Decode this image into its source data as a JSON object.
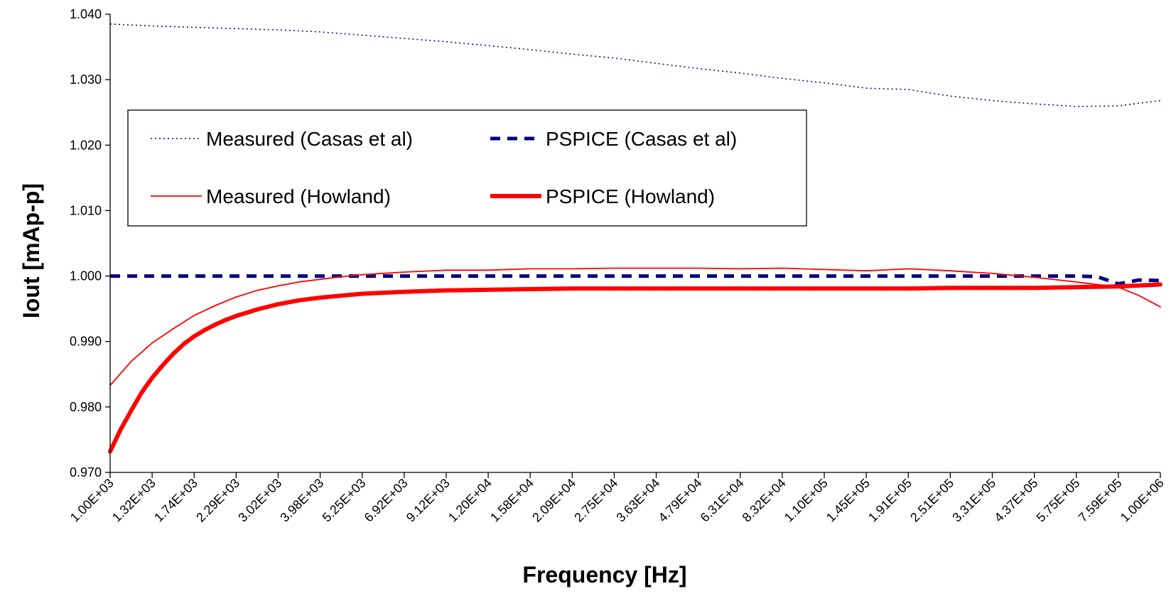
{
  "chart_data": {
    "type": "line",
    "title": "",
    "xlabel": "Frequency [Hz]",
    "ylabel": "Iout [mAp-p]",
    "x_scale": "log",
    "xlim": [
      1000,
      1000000
    ],
    "ylim": [
      0.97,
      1.04
    ],
    "grid": false,
    "legend_position": "upper-left inside plot",
    "y_ticks": [
      "0.970",
      "0.980",
      "0.990",
      "1.000",
      "1.010",
      "1.020",
      "1.030",
      "1.040"
    ],
    "x_tick_labels": [
      "1.00E+03",
      "1.32E+03",
      "1.74E+03",
      "2.29E+03",
      "3.02E+03",
      "3.98E+03",
      "5.25E+03",
      "6.92E+03",
      "9.12E+03",
      "1.20E+04",
      "1.58E+04",
      "2.09E+04",
      "2.75E+04",
      "3.63E+04",
      "4.79E+04",
      "6.31E+04",
      "8.32E+04",
      "1.10E+05",
      "1.45E+05",
      "1.91E+05",
      "2.51E+05",
      "3.31E+05",
      "4.37E+05",
      "5.75E+05",
      "7.59E+05",
      "1.00E+06"
    ],
    "series": [
      {
        "name": "Measured (Casas et al)",
        "color": "#000080",
        "style": "dotted-thin",
        "x": [
          1000,
          1320,
          1740,
          2290,
          3020,
          3980,
          5250,
          6920,
          9120,
          12000,
          15800,
          20900,
          27500,
          36300,
          47900,
          63100,
          83200,
          110000,
          145000,
          191000,
          251000,
          331000,
          437000,
          575000,
          759000,
          1000000
        ],
        "y": [
          1.0385,
          1.0382,
          1.038,
          1.0378,
          1.0376,
          1.0373,
          1.0368,
          1.0363,
          1.0358,
          1.0352,
          1.0346,
          1.0339,
          1.0333,
          1.0325,
          1.0317,
          1.031,
          1.0302,
          1.0295,
          1.0287,
          1.0285,
          1.0275,
          1.0268,
          1.0263,
          1.0259,
          1.026,
          1.0268
        ]
      },
      {
        "name": "PSPICE (Casas et al)",
        "color": "#000080",
        "style": "dashed-thick",
        "x": [
          1000,
          1320,
          1740,
          2290,
          3020,
          3980,
          5250,
          6920,
          9120,
          12000,
          15800,
          20900,
          27500,
          36300,
          47900,
          63100,
          83200,
          110000,
          145000,
          191000,
          251000,
          331000,
          437000,
          575000,
          660000,
          759000,
          870000,
          1000000
        ],
        "y": [
          1.0,
          1.0,
          1.0,
          1.0,
          1.0,
          1.0,
          1.0,
          1.0,
          1.0,
          1.0,
          1.0,
          1.0,
          1.0,
          1.0,
          1.0,
          1.0,
          1.0,
          1.0,
          1.0,
          1.0,
          1.0,
          1.0,
          1.0,
          1.0,
          0.9999,
          0.9988,
          0.9994,
          0.9993
        ]
      },
      {
        "name": "Measured (Howland)",
        "color": "#ff0000",
        "style": "solid-thin",
        "x": [
          1000,
          1150,
          1320,
          1520,
          1740,
          2000,
          2290,
          2630,
          3020,
          3470,
          3980,
          4570,
          5250,
          6920,
          9120,
          12000,
          15800,
          20900,
          27500,
          36300,
          47900,
          63100,
          83200,
          110000,
          145000,
          191000,
          251000,
          331000,
          437000,
          575000,
          759000,
          870000,
          1000000
        ],
        "y": [
          0.9833,
          0.987,
          0.9898,
          0.992,
          0.994,
          0.9955,
          0.9968,
          0.9978,
          0.9985,
          0.9991,
          0.9995,
          0.9999,
          1.0002,
          1.0006,
          1.0009,
          1.0009,
          1.0011,
          1.0011,
          1.0012,
          1.0012,
          1.0012,
          1.0011,
          1.0012,
          1.001,
          1.0008,
          1.0011,
          1.0008,
          1.0004,
          0.9998,
          0.9991,
          0.9983,
          0.997,
          0.9953
        ]
      },
      {
        "name": "PSPICE (Howland)",
        "color": "#ff0000",
        "style": "solid-thick",
        "x": [
          1000,
          1070,
          1150,
          1230,
          1320,
          1420,
          1520,
          1630,
          1740,
          1870,
          2000,
          2140,
          2290,
          2630,
          3020,
          3470,
          3980,
          4570,
          5250,
          6920,
          9120,
          12000,
          15800,
          20900,
          27500,
          36300,
          47900,
          63100,
          83200,
          110000,
          145000,
          191000,
          251000,
          331000,
          437000,
          575000,
          759000,
          1000000
        ],
        "y": [
          0.9732,
          0.9765,
          0.9795,
          0.9822,
          0.9845,
          0.9865,
          0.9882,
          0.9897,
          0.9908,
          0.9918,
          0.9926,
          0.9933,
          0.9939,
          0.9949,
          0.9957,
          0.9963,
          0.9967,
          0.997,
          0.9973,
          0.9976,
          0.9978,
          0.9979,
          0.998,
          0.9981,
          0.9981,
          0.9981,
          0.9981,
          0.9981,
          0.9981,
          0.9981,
          0.9981,
          0.9981,
          0.9982,
          0.9982,
          0.9982,
          0.9983,
          0.9984,
          0.9987
        ]
      }
    ]
  }
}
